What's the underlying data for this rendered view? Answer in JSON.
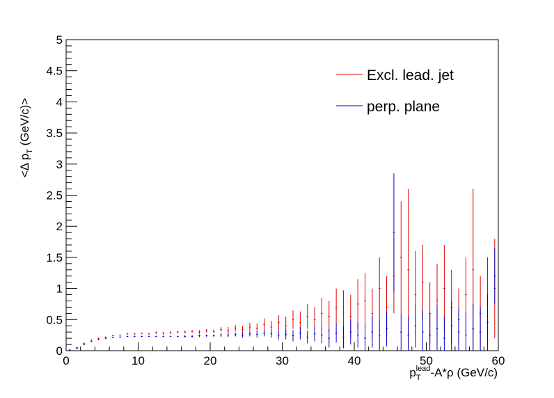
{
  "chart_data": {
    "type": "scatter",
    "title": "",
    "xlabel": {
      "base": "p",
      "sub": "T",
      "sup": "lead",
      "rest": "-A*ρ (GeV/c)"
    },
    "ylabel": {
      "pre": "<Δ p",
      "sub": "T",
      "post": " (GeV/c)>"
    },
    "xlim": [
      0,
      60
    ],
    "ylim": [
      0,
      5
    ],
    "x_ticks": [
      "0",
      "10",
      "20",
      "30",
      "40",
      "50",
      "60"
    ],
    "y_ticks": [
      "0",
      "0.5",
      "1",
      "1.5",
      "2",
      "2.5",
      "3",
      "3.5",
      "4",
      "4.5",
      "5"
    ],
    "bin_width": 0.25,
    "grid": false,
    "legend_position": "top-right",
    "series": [
      {
        "name": "Excl. lead. jet",
        "color": "#dd0000",
        "x": [
          0.5,
          1.5,
          2.5,
          3.5,
          4.5,
          5.5,
          6.5,
          7.5,
          8.5,
          9.5,
          10.5,
          11.5,
          12.5,
          13.5,
          14.5,
          15.5,
          16.5,
          17.5,
          18.5,
          19.5,
          20.5,
          21.5,
          22.5,
          23.5,
          24.5,
          25.5,
          26.5,
          27.5,
          28.5,
          29.5,
          30.5,
          31.5,
          32.5,
          33.5,
          34.5,
          35.5,
          36.5,
          37.5,
          38.5,
          39.5,
          40.5,
          41.5,
          42.5,
          43.5,
          44.5,
          45.5,
          46.5,
          47.5,
          48.5,
          49.5,
          50.5,
          51.5,
          52.5,
          53.5,
          54.5,
          55.5,
          56.5,
          57.5,
          58.5,
          59.5
        ],
        "y": [
          0.01,
          0.05,
          0.12,
          0.17,
          0.2,
          0.22,
          0.24,
          0.25,
          0.27,
          0.27,
          0.28,
          0.27,
          0.29,
          0.28,
          0.29,
          0.3,
          0.3,
          0.31,
          0.3,
          0.32,
          0.31,
          0.34,
          0.33,
          0.36,
          0.34,
          0.38,
          0.36,
          0.42,
          0.38,
          0.45,
          0.4,
          0.5,
          0.45,
          0.55,
          0.5,
          0.6,
          0.55,
          0.7,
          0.62,
          0.55,
          0.75,
          0.8,
          0.6,
          1.0,
          0.7,
          1.2,
          1.5,
          1.3,
          0.9,
          1.1,
          0.6,
          0.8,
          1.0,
          0.7,
          0.5,
          0.9,
          1.3,
          0.6,
          0.8,
          1.0
        ],
        "err": [
          0.01,
          0.01,
          0.01,
          0.01,
          0.01,
          0.01,
          0.01,
          0.01,
          0.01,
          0.01,
          0.01,
          0.01,
          0.02,
          0.02,
          0.02,
          0.02,
          0.02,
          0.02,
          0.03,
          0.03,
          0.03,
          0.04,
          0.05,
          0.05,
          0.06,
          0.07,
          0.08,
          0.1,
          0.1,
          0.12,
          0.15,
          0.15,
          0.18,
          0.2,
          0.2,
          0.25,
          0.25,
          0.3,
          0.35,
          0.35,
          0.4,
          0.45,
          0.4,
          0.5,
          0.5,
          0.6,
          0.9,
          1.3,
          0.7,
          0.6,
          0.5,
          0.6,
          0.7,
          0.6,
          0.5,
          0.6,
          1.3,
          0.6,
          0.7,
          0.8
        ]
      },
      {
        "name": "perp. plane",
        "color": "#0000cc",
        "x": [
          0.5,
          1.5,
          2.5,
          3.5,
          4.5,
          5.5,
          6.5,
          7.5,
          8.5,
          9.5,
          10.5,
          11.5,
          12.5,
          13.5,
          14.5,
          15.5,
          16.5,
          17.5,
          18.5,
          19.5,
          20.5,
          21.5,
          22.5,
          23.5,
          24.5,
          25.5,
          26.5,
          27.5,
          28.5,
          29.5,
          30.5,
          31.5,
          32.5,
          33.5,
          34.5,
          35.5,
          36.5,
          37.5,
          38.5,
          39.5,
          40.5,
          41.5,
          42.5,
          43.5,
          44.5,
          45.5,
          46.5,
          47.5,
          48.5,
          49.5,
          50.5,
          51.5,
          52.5,
          53.5,
          54.5,
          55.5,
          56.5,
          57.5,
          58.5,
          59.5
        ],
        "y": [
          0.01,
          0.04,
          0.1,
          0.15,
          0.18,
          0.2,
          0.21,
          0.22,
          0.23,
          0.23,
          0.23,
          0.23,
          0.23,
          0.23,
          0.23,
          0.23,
          0.23,
          0.23,
          0.24,
          0.24,
          0.24,
          0.25,
          0.25,
          0.26,
          0.25,
          0.27,
          0.26,
          0.28,
          0.27,
          0.25,
          0.26,
          0.24,
          0.28,
          0.22,
          0.27,
          0.25,
          0.2,
          0.28,
          0.22,
          0.3,
          0.25,
          0.2,
          0.3,
          0.25,
          0.35,
          1.9,
          0.3,
          0.25,
          0.4,
          0.3,
          0.25,
          0.35,
          0.2,
          0.4,
          0.3,
          0.25,
          0.35,
          0.3,
          0.45,
          1.2
        ],
        "err": [
          0.01,
          0.01,
          0.01,
          0.01,
          0.01,
          0.01,
          0.01,
          0.01,
          0.01,
          0.01,
          0.01,
          0.01,
          0.01,
          0.01,
          0.01,
          0.01,
          0.02,
          0.02,
          0.02,
          0.02,
          0.02,
          0.03,
          0.03,
          0.03,
          0.04,
          0.04,
          0.05,
          0.05,
          0.06,
          0.07,
          0.08,
          0.09,
          0.1,
          0.1,
          0.12,
          0.13,
          0.15,
          0.15,
          0.18,
          0.2,
          0.2,
          0.22,
          0.25,
          0.25,
          0.28,
          0.95,
          0.3,
          0.3,
          0.35,
          0.35,
          0.35,
          0.38,
          0.35,
          0.4,
          0.4,
          0.38,
          0.4,
          0.4,
          0.45,
          0.45
        ]
      }
    ]
  }
}
